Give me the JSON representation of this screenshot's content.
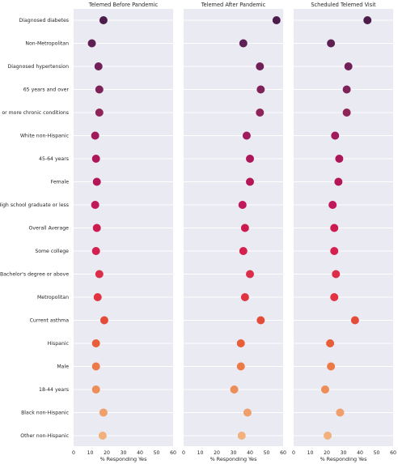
{
  "chart_data": {
    "type": "scatter",
    "subtype": "dot-plot",
    "categories": [
      "Diagnosed diabetes",
      "Non-Metropolitan",
      "Diagnosed hypertension",
      "65 years and over",
      "One or more chronic conditions",
      "White non-Hispanic",
      "45-64 years",
      "Female",
      "High school graduate or less",
      "Overall Average",
      "Some college",
      "Bachelor's degree or above",
      "Metropolitan",
      "Current asthma",
      "Hispanic",
      "Male",
      "18-44 years",
      "Black non-Hispanic",
      "Other non-Hispanic"
    ],
    "panels": [
      {
        "title": "Telemed Before Pandemic",
        "xlabel": "% Responding Yes",
        "values": [
          18,
          11,
          15,
          15.5,
          15.5,
          13,
          13.5,
          14,
          13,
          14,
          13.5,
          15.5,
          14.5,
          18.5,
          13.5,
          13.5,
          13.5,
          18,
          17.5
        ]
      },
      {
        "title": "Telemed After Pandemic",
        "xlabel": "% Responding Yes",
        "values": [
          56,
          36,
          46,
          46.5,
          46,
          38,
          40,
          40,
          35.5,
          37,
          36,
          40,
          37,
          46.5,
          34.5,
          34.5,
          30.5,
          38.5,
          35
        ]
      },
      {
        "title": "Scheduled Telemed Visit",
        "xlabel": "% Responding Yes",
        "values": [
          44.5,
          22.5,
          33,
          32,
          32,
          25,
          27.5,
          27,
          23.5,
          24.5,
          24.5,
          25.5,
          24.5,
          37,
          22,
          22.5,
          19,
          28,
          20.5
        ]
      }
    ],
    "xlim": [
      0,
      60
    ],
    "xticks": [
      "0",
      "10",
      "20",
      "30",
      "40",
      "50",
      "60"
    ],
    "grid": true,
    "colors": [
      "#4c1d4b",
      "#5e1f52",
      "#701f57",
      "#7f2259",
      "#8f2459",
      "#a11a5b",
      "#ad1759",
      "#b41658",
      "#c1175b",
      "#cb1b4f",
      "#d3204e",
      "#dc2e4a",
      "#e13342",
      "#e44c3a",
      "#e85e38",
      "#eb7a47",
      "#ed8d57",
      "#f09f6a",
      "#f2b07c"
    ]
  }
}
